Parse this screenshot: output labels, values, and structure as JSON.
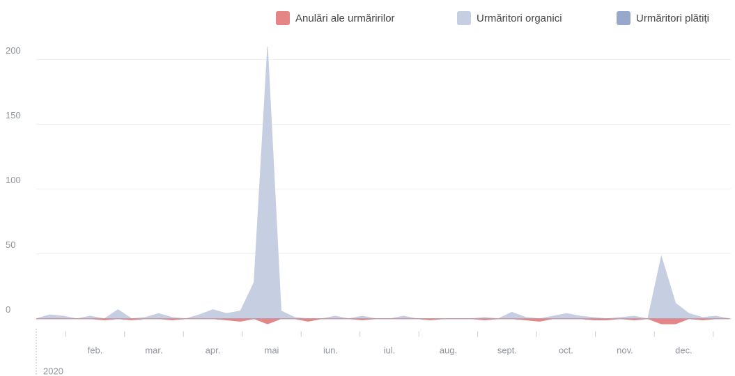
{
  "chart_data": {
    "type": "area",
    "year_label": "2020",
    "categories": [
      "feb.",
      "mar.",
      "apr.",
      "mai",
      "iun.",
      "iul.",
      "aug.",
      "sept.",
      "oct.",
      "nov.",
      "dec."
    ],
    "x": [
      0.5,
      0.73,
      0.96,
      1.19,
      1.42,
      1.66,
      1.89,
      2.12,
      2.35,
      2.58,
      2.81,
      3.04,
      3.27,
      3.5,
      3.73,
      3.97,
      4.2,
      4.43,
      4.66,
      4.89,
      5.12,
      5.35,
      5.58,
      5.81,
      6.04,
      6.27,
      6.51,
      6.74,
      6.97,
      7.2,
      7.43,
      7.66,
      7.89,
      8.12,
      8.35,
      8.58,
      8.82,
      9.05,
      9.28,
      9.51,
      9.74,
      9.97,
      10.2,
      10.43,
      10.66,
      10.89,
      11.12,
      11.36,
      11.59,
      11.82,
      12.05,
      12.28
    ],
    "series": [
      {
        "name": "Anulări ale urmăririlor",
        "color": "#e58585",
        "values": [
          0,
          0,
          0,
          0,
          0,
          -1,
          0,
          -1,
          0,
          0,
          -1,
          0,
          0,
          0,
          -1,
          -2,
          0,
          -4,
          0,
          0,
          -2,
          0,
          0,
          0,
          -1,
          0,
          0,
          0,
          0,
          -1,
          0,
          0,
          0,
          -1,
          0,
          0,
          -1,
          -2,
          0,
          0,
          0,
          -1,
          -1,
          0,
          -1,
          0,
          -4,
          -4,
          0,
          -1,
          0,
          0
        ]
      },
      {
        "name": "Urmăritori organici",
        "color": "#c6cee1",
        "values": [
          0,
          3,
          2,
          0,
          2,
          0,
          7,
          0,
          1,
          4,
          1,
          0,
          3,
          7,
          4,
          6,
          28,
          210,
          6,
          1,
          0,
          0,
          2,
          0,
          2,
          0,
          0,
          2,
          0,
          0,
          0,
          0,
          0,
          1,
          0,
          5,
          1,
          0,
          2,
          4,
          2,
          1,
          0,
          1,
          2,
          0,
          48,
          12,
          4,
          1,
          2,
          0
        ]
      },
      {
        "name": "Urmăritori plătiți",
        "color": "#98a8cc",
        "values": [
          0,
          0,
          0,
          0,
          0,
          0,
          0,
          0,
          0,
          0,
          0,
          0,
          0,
          0,
          0,
          0,
          0,
          0,
          0,
          0,
          0,
          0,
          0,
          0,
          0,
          0,
          0,
          0,
          0,
          0,
          0,
          0,
          0,
          0,
          0,
          0,
          0,
          0,
          0,
          0,
          0,
          0,
          0,
          0,
          0,
          0,
          0,
          0,
          0,
          0,
          0,
          0
        ]
      }
    ],
    "xlim": [
      0.5,
      12.3
    ],
    "xticks": [
      1,
      2,
      3,
      4,
      5,
      6,
      7,
      8,
      9,
      10,
      11,
      12
    ],
    "ylim": [
      -5,
      210
    ],
    "yticks": [
      0,
      50,
      100,
      150,
      200
    ],
    "grid": true
  }
}
